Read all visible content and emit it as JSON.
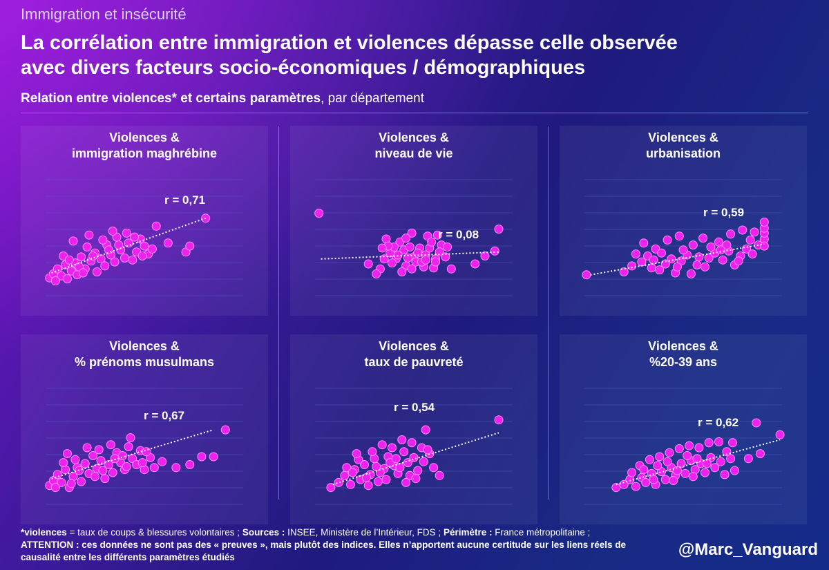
{
  "header": {
    "kicker": "Immigration et insécurité",
    "title_line1": "La corrélation entre immigration et violences dépasse celle observée",
    "title_line2": "avec divers facteurs socio-économiques / démographiques",
    "subtitle_bold": "Relation entre violences* et certains paramètres",
    "subtitle_rest": ", par département"
  },
  "footer": {
    "violences_label": "*violences",
    "violences_def": " = taux de coups & blessures volontaires ; ",
    "sources_label": "Sources :",
    "sources_text": " INSEE, Ministère de l’Intérieur, FDS ; ",
    "perimetre_label": "Périmètre :",
    "perimetre_text": " France métropolitaine ; ",
    "attention_label": "ATTENTION",
    "attention_text": " : ces données ne sont pas des « preuves », mais plutôt des indices. Elles n’apportent aucune certitude sur les liens réels de causalité entre les différents paramètres étudiés",
    "handle": "@Marc_Vanguard"
  },
  "colors": {
    "point": "#ee22ee",
    "point_stroke": "#ff8cff",
    "trend": "#ffffff",
    "gridline": "#5560c8"
  },
  "chart_data": [
    {
      "type": "scatter",
      "title_line1": "Violences &",
      "title_line2": "immigration maghrébine",
      "r_label": "r = 0,71",
      "r": 0.71,
      "xlim": [
        0,
        10
      ],
      "ylim": [
        0,
        10
      ],
      "trend": [
        [
          0.3,
          1.6
        ],
        [
          8.1,
          7.1
        ]
      ],
      "points": [
        [
          0.2,
          1.1
        ],
        [
          0.4,
          1.5
        ],
        [
          0.6,
          2.0
        ],
        [
          0.8,
          1.3
        ],
        [
          1.0,
          2.4
        ],
        [
          1.1,
          1.0
        ],
        [
          1.3,
          1.8
        ],
        [
          1.5,
          2.6
        ],
        [
          1.6,
          1.4
        ],
        [
          1.8,
          3.2
        ],
        [
          2.0,
          2.0
        ],
        [
          2.1,
          4.2
        ],
        [
          2.3,
          2.8
        ],
        [
          2.5,
          3.6
        ],
        [
          2.6,
          1.7
        ],
        [
          2.8,
          3.0
        ],
        [
          3.0,
          2.3
        ],
        [
          3.1,
          4.4
        ],
        [
          3.3,
          3.4
        ],
        [
          3.5,
          2.7
        ],
        [
          3.6,
          5.2
        ],
        [
          3.8,
          3.9
        ],
        [
          4.0,
          3.1
        ],
        [
          4.2,
          4.6
        ],
        [
          4.4,
          2.9
        ],
        [
          4.6,
          3.7
        ],
        [
          4.8,
          5.0
        ],
        [
          5.0,
          4.3
        ],
        [
          5.2,
          3.5
        ],
        [
          1.4,
          4.8
        ],
        [
          2.2,
          5.4
        ],
        [
          3.4,
          5.8
        ],
        [
          0.9,
          3.3
        ],
        [
          1.7,
          2.2
        ],
        [
          2.9,
          4.9
        ],
        [
          4.1,
          5.6
        ],
        [
          5.4,
          4.0
        ],
        [
          5.6,
          6.3
        ],
        [
          6.2,
          4.6
        ],
        [
          7.1,
          3.7
        ],
        [
          7.3,
          4.3
        ],
        [
          8.1,
          7.1
        ],
        [
          1.2,
          2.9
        ],
        [
          2.4,
          3.3
        ],
        [
          3.7,
          4.4
        ],
        [
          0.5,
          0.8
        ],
        [
          1.9,
          1.6
        ],
        [
          3.2,
          3.9
        ],
        [
          4.5,
          5.2
        ],
        [
          4.9,
          3.3
        ]
      ]
    },
    {
      "type": "scatter",
      "title_line1": "Violences &",
      "title_line2": "niveau de vie",
      "r_label": "r = 0,08",
      "r": 0.08,
      "xlim": [
        0,
        10
      ],
      "ylim": [
        0,
        10
      ],
      "trend": [
        [
          0.3,
          3.0
        ],
        [
          9.3,
          3.7
        ]
      ],
      "points": [
        [
          0.2,
          7.6
        ],
        [
          9.3,
          6.0
        ],
        [
          9.1,
          3.8
        ],
        [
          8.6,
          3.3
        ],
        [
          8.1,
          2.5
        ],
        [
          3.3,
          2.0
        ],
        [
          3.1,
          1.5
        ],
        [
          2.7,
          2.5
        ],
        [
          4.1,
          3.0
        ],
        [
          4.6,
          2.3
        ],
        [
          5.0,
          3.2
        ],
        [
          5.6,
          3.4
        ],
        [
          6.1,
          3.0
        ],
        [
          5.8,
          4.1
        ],
        [
          6.4,
          4.4
        ],
        [
          6.6,
          3.2
        ],
        [
          6.9,
          2.0
        ],
        [
          3.6,
          5.0
        ],
        [
          4.3,
          4.7
        ],
        [
          4.9,
          5.6
        ],
        [
          5.3,
          4.1
        ],
        [
          5.7,
          5.3
        ],
        [
          6.2,
          5.4
        ],
        [
          3.8,
          3.6
        ],
        [
          4.5,
          3.9
        ],
        [
          4.0,
          4.2
        ],
        [
          5.1,
          2.7
        ],
        [
          4.4,
          1.7
        ],
        [
          5.5,
          2.2
        ],
        [
          6.0,
          2.1
        ],
        [
          3.5,
          3.0
        ],
        [
          3.9,
          2.6
        ],
        [
          4.8,
          4.2
        ],
        [
          5.2,
          3.6
        ],
        [
          4.2,
          3.4
        ],
        [
          4.7,
          3.1
        ],
        [
          5.4,
          2.7
        ],
        [
          6.3,
          3.7
        ],
        [
          3.7,
          4.3
        ],
        [
          4.6,
          5.1
        ],
        [
          5.9,
          4.7
        ],
        [
          6.7,
          4.2
        ],
        [
          3.4,
          4.1
        ],
        [
          4.9,
          2.0
        ],
        [
          5.6,
          2.9
        ],
        [
          6.1,
          2.7
        ]
      ]
    },
    {
      "type": "scatter",
      "title_line1": "Violences &",
      "title_line2": "urbanisation",
      "r_label": "r = 0,59",
      "r": 0.59,
      "xlim": [
        0,
        10
      ],
      "ylim": [
        0,
        10
      ],
      "trend": [
        [
          0.3,
          1.4
        ],
        [
          9.1,
          4.5
        ]
      ],
      "points": [
        [
          0.1,
          1.4
        ],
        [
          2.0,
          1.7
        ],
        [
          2.4,
          2.3
        ],
        [
          2.9,
          2.7
        ],
        [
          3.2,
          3.3
        ],
        [
          3.4,
          2.1
        ],
        [
          3.8,
          1.9
        ],
        [
          4.1,
          2.5
        ],
        [
          4.4,
          3.0
        ],
        [
          4.6,
          1.6
        ],
        [
          4.9,
          2.8
        ],
        [
          5.2,
          3.4
        ],
        [
          5.4,
          1.5
        ],
        [
          5.7,
          2.4
        ],
        [
          6.1,
          2.2
        ],
        [
          6.3,
          3.1
        ],
        [
          6.6,
          3.6
        ],
        [
          7.0,
          2.9
        ],
        [
          7.3,
          3.8
        ],
        [
          7.6,
          2.4
        ],
        [
          7.9,
          3.3
        ],
        [
          8.2,
          4.0
        ],
        [
          8.5,
          3.5
        ],
        [
          8.8,
          4.4
        ],
        [
          9.1,
          5.0
        ],
        [
          9.1,
          4.3
        ],
        [
          9.1,
          5.6
        ],
        [
          9.1,
          6.1
        ],
        [
          9.1,
          6.7
        ],
        [
          3.0,
          4.6
        ],
        [
          3.6,
          4.0
        ],
        [
          4.2,
          4.9
        ],
        [
          4.8,
          5.3
        ],
        [
          5.5,
          4.4
        ],
        [
          6.0,
          5.1
        ],
        [
          6.8,
          4.7
        ],
        [
          7.4,
          5.5
        ],
        [
          8.0,
          5.9
        ],
        [
          8.6,
          5.7
        ],
        [
          3.9,
          3.6
        ],
        [
          5.0,
          3.9
        ],
        [
          6.4,
          4.2
        ],
        [
          7.2,
          4.4
        ],
        [
          8.4,
          4.9
        ],
        [
          2.6,
          3.5
        ],
        [
          3.5,
          2.9
        ],
        [
          4.7,
          2.2
        ],
        [
          5.8,
          3.2
        ],
        [
          6.9,
          3.9
        ],
        [
          7.8,
          2.8
        ]
      ]
    },
    {
      "type": "scatter",
      "title_line1": "Violences &",
      "title_line2": "% prénoms musulmans",
      "r_label": "r = 0,67",
      "r": 0.67,
      "xlim": [
        0,
        10
      ],
      "ylim": [
        0,
        10
      ],
      "trend": [
        [
          0.3,
          1.9
        ],
        [
          8.5,
          6.8
        ]
      ],
      "points": [
        [
          0.2,
          1.2
        ],
        [
          0.4,
          1.7
        ],
        [
          0.6,
          2.3
        ],
        [
          0.8,
          1.5
        ],
        [
          1.0,
          2.8
        ],
        [
          1.2,
          1.0
        ],
        [
          1.4,
          2.1
        ],
        [
          1.6,
          3.0
        ],
        [
          1.8,
          1.6
        ],
        [
          2.0,
          3.4
        ],
        [
          2.2,
          2.4
        ],
        [
          2.4,
          4.2
        ],
        [
          2.6,
          2.9
        ],
        [
          2.8,
          3.7
        ],
        [
          3.0,
          1.9
        ],
        [
          3.2,
          3.3
        ],
        [
          3.4,
          2.5
        ],
        [
          3.6,
          4.5
        ],
        [
          3.8,
          3.5
        ],
        [
          4.0,
          2.8
        ],
        [
          4.2,
          5.1
        ],
        [
          4.4,
          3.9
        ],
        [
          4.6,
          3.3
        ],
        [
          4.8,
          4.7
        ],
        [
          5.0,
          2.8
        ],
        [
          1.1,
          4.4
        ],
        [
          2.1,
          5.0
        ],
        [
          3.3,
          5.3
        ],
        [
          4.3,
          6.0
        ],
        [
          5.3,
          4.0
        ],
        [
          5.9,
          3.6
        ],
        [
          6.6,
          3.0
        ],
        [
          7.3,
          3.3
        ],
        [
          7.9,
          4.1
        ],
        [
          8.5,
          4.1
        ],
        [
          9.1,
          6.8
        ],
        [
          0.9,
          3.5
        ],
        [
          1.7,
          2.7
        ],
        [
          2.7,
          4.8
        ],
        [
          3.9,
          4.2
        ],
        [
          4.9,
          3.5
        ],
        [
          5.5,
          3.0
        ],
        [
          1.5,
          3.8
        ],
        [
          2.5,
          2.1
        ],
        [
          3.5,
          3.9
        ],
        [
          0.5,
          1.0
        ],
        [
          1.3,
          1.4
        ],
        [
          2.9,
          2.7
        ],
        [
          4.1,
          3.1
        ],
        [
          5.1,
          4.6
        ]
      ]
    },
    {
      "type": "scatter",
      "title_line1": "Violences &",
      "title_line2": "taux de pauvreté",
      "r_label": "r = 0,54",
      "r": 0.54,
      "xlim": [
        0,
        10
      ],
      "ylim": [
        0,
        10
      ],
      "trend": [
        [
          0.9,
          1.3
        ],
        [
          9.3,
          6.5
        ]
      ],
      "points": [
        [
          0.8,
          1.0
        ],
        [
          1.2,
          1.5
        ],
        [
          1.5,
          2.2
        ],
        [
          1.8,
          1.3
        ],
        [
          2.0,
          2.8
        ],
        [
          2.3,
          1.8
        ],
        [
          2.5,
          3.3
        ],
        [
          2.8,
          2.3
        ],
        [
          3.0,
          3.9
        ],
        [
          3.2,
          1.6
        ],
        [
          3.5,
          2.9
        ],
        [
          3.7,
          4.1
        ],
        [
          4.0,
          3.2
        ],
        [
          4.2,
          2.4
        ],
        [
          4.5,
          4.6
        ],
        [
          4.7,
          3.5
        ],
        [
          5.0,
          4.0
        ],
        [
          5.2,
          2.7
        ],
        [
          5.5,
          3.6
        ],
        [
          5.8,
          4.4
        ],
        [
          6.0,
          3.0
        ],
        [
          6.3,
          2.2
        ],
        [
          1.6,
          3.0
        ],
        [
          2.2,
          3.8
        ],
        [
          2.9,
          4.6
        ],
        [
          3.4,
          5.3
        ],
        [
          3.9,
          5.0
        ],
        [
          4.4,
          5.8
        ],
        [
          4.9,
          5.5
        ],
        [
          5.4,
          5.0
        ],
        [
          5.7,
          4.8
        ],
        [
          5.6,
          6.8
        ],
        [
          9.3,
          7.8
        ],
        [
          2.6,
          2.0
        ],
        [
          3.3,
          2.5
        ],
        [
          3.8,
          3.5
        ],
        [
          4.3,
          3.0
        ],
        [
          4.8,
          2.2
        ],
        [
          1.9,
          2.5
        ],
        [
          2.7,
          1.2
        ],
        [
          3.6,
          1.8
        ],
        [
          4.6,
          1.5
        ],
        [
          5.1,
          1.9
        ],
        [
          2.1,
          4.4
        ],
        [
          3.1,
          3.1
        ],
        [
          4.1,
          3.9
        ]
      ]
    },
    {
      "type": "scatter",
      "title_line1": "Violences &",
      "title_line2": "%20-39 ans",
      "r_label": "r = 0,62",
      "r": 0.62,
      "xlim": [
        0,
        10
      ],
      "ylim": [
        0,
        10
      ],
      "trend": [
        [
          1.6,
          1.3
        ],
        [
          9.9,
          5.8
        ]
      ],
      "points": [
        [
          1.6,
          1.0
        ],
        [
          2.0,
          1.3
        ],
        [
          2.3,
          1.8
        ],
        [
          2.6,
          1.1
        ],
        [
          2.9,
          2.0
        ],
        [
          3.1,
          1.5
        ],
        [
          3.4,
          2.4
        ],
        [
          3.6,
          1.3
        ],
        [
          3.9,
          2.6
        ],
        [
          4.1,
          1.8
        ],
        [
          4.4,
          3.0
        ],
        [
          4.6,
          2.2
        ],
        [
          4.9,
          3.4
        ],
        [
          5.1,
          2.4
        ],
        [
          5.4,
          3.7
        ],
        [
          5.6,
          2.8
        ],
        [
          5.9,
          3.4
        ],
        [
          6.1,
          2.5
        ],
        [
          6.4,
          4.0
        ],
        [
          6.6,
          3.0
        ],
        [
          6.9,
          3.6
        ],
        [
          7.1,
          2.3
        ],
        [
          7.4,
          3.9
        ],
        [
          7.6,
          2.7
        ],
        [
          2.8,
          3.2
        ],
        [
          3.3,
          3.8
        ],
        [
          3.8,
          4.1
        ],
        [
          4.3,
          4.5
        ],
        [
          4.8,
          4.9
        ],
        [
          5.3,
          5.2
        ],
        [
          5.8,
          5.0
        ],
        [
          6.3,
          5.5
        ],
        [
          6.8,
          5.6
        ],
        [
          7.5,
          5.5
        ],
        [
          8.3,
          3.9
        ],
        [
          8.9,
          4.4
        ],
        [
          8.7,
          7.5
        ],
        [
          9.9,
          6.3
        ],
        [
          3.0,
          2.8
        ],
        [
          3.7,
          3.2
        ],
        [
          4.2,
          3.6
        ],
        [
          4.7,
          2.7
        ],
        [
          5.2,
          4.2
        ],
        [
          5.7,
          3.9
        ],
        [
          6.2,
          3.4
        ],
        [
          7.2,
          4.6
        ],
        [
          2.4,
          2.5
        ],
        [
          3.5,
          1.8
        ],
        [
          4.5,
          1.7
        ],
        [
          5.5,
          2.1
        ]
      ]
    }
  ]
}
